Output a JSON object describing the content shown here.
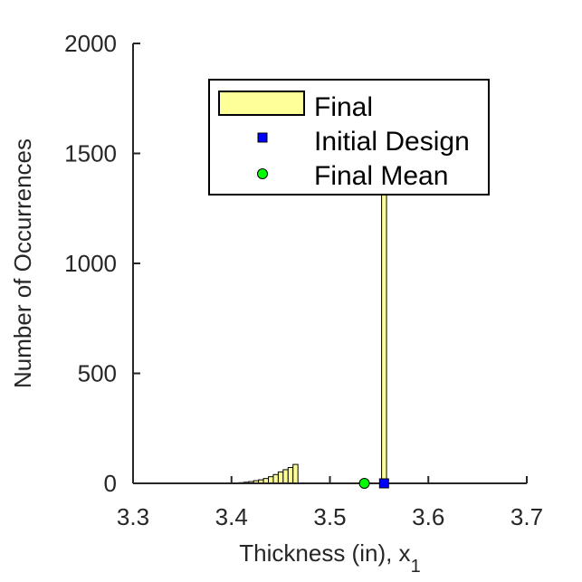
{
  "chart_data": {
    "type": "bar",
    "title": "",
    "xlabel": "Thickness (in), x",
    "xlabel_subscript": "1",
    "ylabel": "Number of Occurrences",
    "xlim": [
      3.3,
      3.7
    ],
    "ylim": [
      0,
      2000
    ],
    "xticks": [
      3.3,
      3.4,
      3.5,
      3.6,
      3.7
    ],
    "yticks": [
      0,
      500,
      1000,
      1500,
      2000
    ],
    "xtick_labels": [
      "3.3",
      "3.4",
      "3.5",
      "3.6",
      "3.7"
    ],
    "ytick_labels": [
      "0",
      "500",
      "1000",
      "1500",
      "2000"
    ],
    "grid": false,
    "legend_position": "top-right",
    "bar_color": "#ffff99",
    "bin_width": 0.005,
    "series": [
      {
        "name": "Final",
        "kind": "histogram",
        "x": [
          3.405,
          3.41,
          3.415,
          3.42,
          3.425,
          3.43,
          3.435,
          3.44,
          3.445,
          3.45,
          3.455,
          3.46,
          3.465,
          3.47,
          3.555
        ],
        "values": [
          1,
          3,
          5,
          8,
          12,
          16,
          22,
          30,
          40,
          52,
          62,
          72,
          86,
          2,
          1750
        ]
      },
      {
        "name": "Initial Design",
        "kind": "marker",
        "x": 3.555,
        "y": 0,
        "color": "#0000ff",
        "marker": "square"
      },
      {
        "name": "Final Mean",
        "kind": "marker",
        "x": 3.535,
        "y": 0,
        "color": "#00ff00",
        "marker": "circle"
      }
    ],
    "zero_line": {
      "x_from": 3.3,
      "x_to": 3.65
    }
  }
}
